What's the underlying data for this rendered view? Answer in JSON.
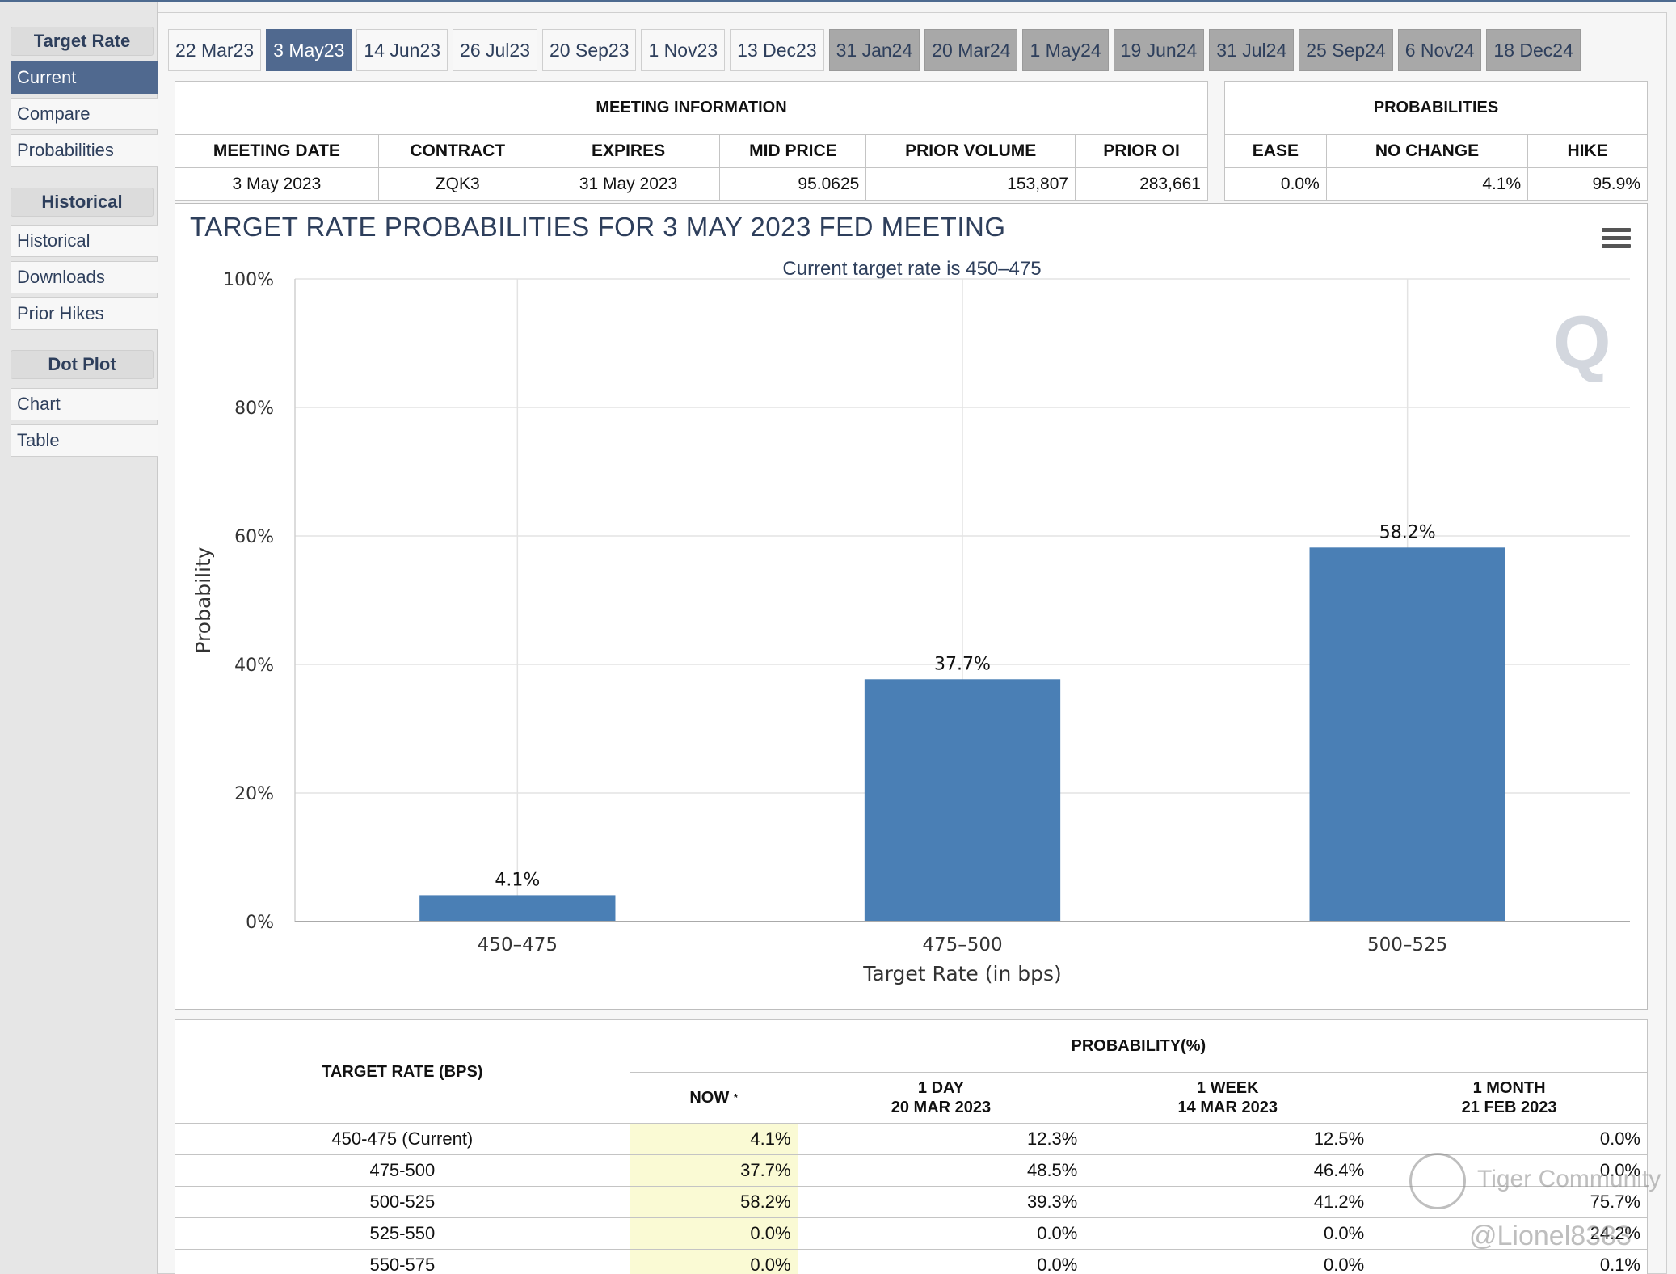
{
  "sidebar": {
    "sections": [
      {
        "header": "Target Rate",
        "items": [
          "Current",
          "Compare",
          "Probabilities"
        ]
      },
      {
        "header": "Historical",
        "items": [
          "Historical",
          "Downloads",
          "Prior Hikes"
        ]
      },
      {
        "header": "Dot Plot",
        "items": [
          "Chart",
          "Table"
        ]
      }
    ],
    "active_item": "Current"
  },
  "tabs": [
    "22 Mar23",
    "3 May23",
    "14 Jun23",
    "26 Jul23",
    "20 Sep23",
    "1 Nov23",
    "13 Dec23",
    "31 Jan24",
    "20 Mar24",
    "1 May24",
    "19 Jun24",
    "31 Jul24",
    "25 Sep24",
    "6 Nov24",
    "18 Dec24"
  ],
  "active_tab": "3 May23",
  "meeting_info": {
    "title": "MEETING INFORMATION",
    "headers": [
      "MEETING DATE",
      "CONTRACT",
      "EXPIRES",
      "MID PRICE",
      "PRIOR VOLUME",
      "PRIOR OI"
    ],
    "values": [
      "3 May 2023",
      "ZQK3",
      "31 May 2023",
      "95.0625",
      "153,807",
      "283,661"
    ]
  },
  "probabilities": {
    "title": "PROBABILITIES",
    "headers": [
      "EASE",
      "NO CHANGE",
      "HIKE"
    ],
    "values": [
      "0.0%",
      "4.1%",
      "95.9%"
    ]
  },
  "chart_data": {
    "type": "bar",
    "title": "TARGET RATE PROBABILITIES FOR 3 MAY 2023 FED MEETING",
    "subtitle": "Current target rate is 450–475",
    "xlabel": "Target Rate (in bps)",
    "ylabel": "Probability",
    "categories": [
      "450–475",
      "475–500",
      "500–525"
    ],
    "values": [
      4.1,
      37.7,
      58.2
    ],
    "data_labels": [
      "4.1%",
      "37.7%",
      "58.2%"
    ],
    "ylim": [
      0,
      100
    ],
    "yticks": [
      "0%",
      "20%",
      "40%",
      "60%",
      "80%",
      "100%"
    ],
    "bar_color": "#4a7fb5",
    "grid": true,
    "watermark": "Q"
  },
  "prob_table": {
    "rate_header": "TARGET RATE (BPS)",
    "prob_header": "PROBABILITY(%)",
    "now_label": "NOW",
    "now_marker": "*",
    "col_1day": [
      "1 DAY",
      "20 MAR 2023"
    ],
    "col_1week": [
      "1 WEEK",
      "14 MAR 2023"
    ],
    "col_1month": [
      "1 MONTH",
      "21 FEB 2023"
    ],
    "rows": [
      [
        "450-475 (Current)",
        "4.1%",
        "12.3%",
        "12.5%",
        "0.0%"
      ],
      [
        "475-500",
        "37.7%",
        "48.5%",
        "46.4%",
        "0.0%"
      ],
      [
        "500-525",
        "58.2%",
        "39.3%",
        "41.2%",
        "75.7%"
      ],
      [
        "525-550",
        "0.0%",
        "0.0%",
        "0.0%",
        "24.2%"
      ],
      [
        "550-575",
        "0.0%",
        "0.0%",
        "0.0%",
        "0.1%"
      ]
    ]
  },
  "watermark": {
    "line1": "Tiger Community",
    "line2": "@Lionel8383"
  },
  "colors": {
    "accent": "#50698f",
    "tab_future": "#a8a8a8",
    "now_highlight": "#fafad4"
  }
}
